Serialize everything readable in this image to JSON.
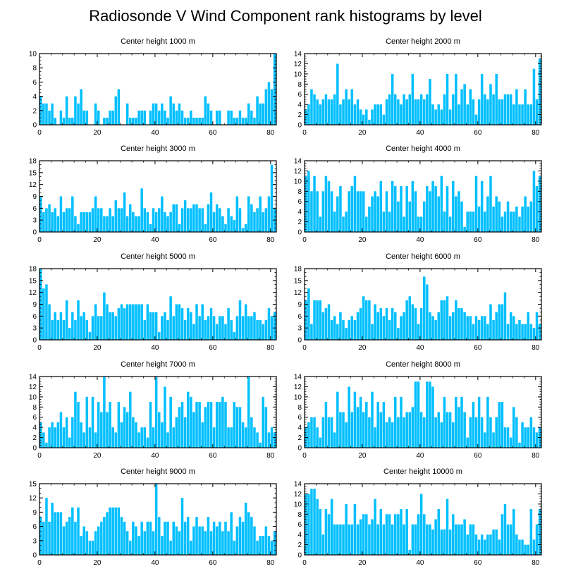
{
  "title": "Radiosonde V Wind Component rank histograms by level",
  "colors": {
    "bar": "#00bfff",
    "frame": "#000000"
  },
  "chart_data": [
    {
      "type": "bar",
      "title": "Center height 1000 m",
      "xlim": [
        0,
        82
      ],
      "ylim": [
        0,
        10
      ],
      "xticks": [
        0,
        20,
        40,
        60,
        80
      ],
      "yticks": [
        0,
        2,
        4,
        6,
        8,
        10
      ],
      "values": [
        4,
        3,
        3,
        2,
        3,
        1,
        0,
        2,
        1,
        4,
        1,
        1,
        4,
        3,
        5,
        2,
        2,
        0,
        0,
        3,
        2,
        0,
        1,
        1,
        2,
        2,
        4,
        5,
        0,
        0,
        3,
        1,
        1,
        1,
        2,
        2,
        2,
        0,
        2,
        3,
        3,
        2,
        3,
        2,
        1,
        4,
        3,
        2,
        3,
        2,
        1,
        1,
        2,
        1,
        1,
        1,
        1,
        4,
        3,
        2,
        0,
        2,
        2,
        0,
        0,
        2,
        2,
        1,
        1,
        2,
        1,
        1,
        3,
        2,
        1,
        4,
        3,
        3,
        5,
        6,
        5,
        10
      ]
    },
    {
      "type": "bar",
      "title": "Center height 2000 m",
      "xlim": [
        0,
        82
      ],
      "ylim": [
        0,
        14
      ],
      "xticks": [
        0,
        20,
        40,
        60,
        80
      ],
      "yticks": [
        0,
        2,
        4,
        6,
        8,
        10,
        12,
        14
      ],
      "values": [
        3,
        4,
        7,
        6,
        5,
        4,
        5,
        6,
        5,
        5,
        6,
        12,
        4,
        5,
        7,
        5,
        7,
        4,
        5,
        3,
        2,
        3,
        1,
        3,
        4,
        4,
        4,
        2,
        5,
        6,
        10,
        6,
        5,
        4,
        6,
        5,
        6,
        10,
        5,
        5,
        6,
        5,
        6,
        9,
        4,
        3,
        4,
        3,
        6,
        10,
        3,
        6,
        10,
        4,
        7,
        8,
        4,
        7,
        5,
        2,
        5,
        10,
        6,
        5,
        8,
        6,
        10,
        5,
        5,
        6,
        6,
        6,
        4,
        7,
        4,
        4,
        7,
        4,
        4,
        11,
        5,
        13
      ]
    },
    {
      "type": "bar",
      "title": "Center height 3000 m",
      "xlim": [
        0,
        82
      ],
      "ylim": [
        0,
        18
      ],
      "xticks": [
        0,
        20,
        40,
        60,
        80
      ],
      "yticks": [
        0,
        3,
        6,
        9,
        12,
        15,
        18
      ],
      "values": [
        9,
        5,
        6,
        7,
        5,
        6,
        4,
        9,
        5,
        6,
        6,
        9,
        4,
        2,
        5,
        5,
        5,
        5,
        6,
        9,
        6,
        6,
        4,
        4,
        6,
        4,
        8,
        6,
        6,
        10,
        4,
        7,
        5,
        4,
        4,
        11,
        6,
        5,
        2,
        6,
        5,
        6,
        9,
        5,
        4,
        5,
        7,
        7,
        2,
        6,
        8,
        6,
        6,
        7,
        7,
        6,
        6,
        2,
        7,
        10,
        5,
        7,
        6,
        4,
        2,
        6,
        4,
        3,
        9,
        6,
        1,
        2,
        9,
        7,
        5,
        6,
        9,
        5,
        6,
        9,
        17,
        6
      ]
    },
    {
      "type": "bar",
      "title": "Center height 4000 m",
      "xlim": [
        0,
        82
      ],
      "ylim": [
        0,
        14
      ],
      "xticks": [
        0,
        20,
        40,
        60,
        80
      ],
      "yticks": [
        0,
        2,
        4,
        6,
        8,
        10,
        12,
        14
      ],
      "values": [
        11,
        12,
        8,
        11,
        8,
        3,
        8,
        11,
        10,
        8,
        4,
        7,
        9,
        3,
        4,
        8,
        9,
        11,
        8,
        8,
        8,
        3,
        5,
        7,
        8,
        7,
        10,
        4,
        8,
        4,
        10,
        9,
        6,
        9,
        3,
        9,
        6,
        10,
        8,
        3,
        3,
        6,
        9,
        8,
        10,
        9,
        7,
        11,
        4,
        9,
        3,
        10,
        7,
        8,
        6,
        1,
        4,
        4,
        4,
        11,
        5,
        10,
        4,
        7,
        11,
        5,
        7,
        6,
        3,
        4,
        6,
        4,
        4,
        5,
        3,
        5,
        7,
        5,
        6,
        12,
        9,
        11
      ]
    },
    {
      "type": "bar",
      "title": "Center height 5000 m",
      "xlim": [
        0,
        82
      ],
      "ylim": [
        0,
        18
      ],
      "xticks": [
        0,
        20,
        40,
        60,
        80
      ],
      "yticks": [
        0,
        3,
        6,
        9,
        12,
        15,
        18
      ],
      "values": [
        18,
        13,
        14,
        9,
        5,
        7,
        5,
        7,
        5,
        10,
        3,
        7,
        5,
        10,
        6,
        7,
        5,
        2,
        6,
        9,
        6,
        6,
        12,
        9,
        7,
        7,
        6,
        8,
        9,
        8,
        9,
        9,
        9,
        9,
        9,
        9,
        5,
        9,
        7,
        7,
        7,
        2,
        6,
        7,
        5,
        11,
        6,
        9,
        9,
        8,
        5,
        8,
        7,
        4,
        9,
        6,
        9,
        5,
        6,
        8,
        6,
        4,
        6,
        6,
        4,
        8,
        5,
        2,
        6,
        10,
        6,
        9,
        6,
        6,
        7,
        5,
        5,
        4,
        5,
        8,
        6,
        7
      ]
    },
    {
      "type": "bar",
      "title": "Center height 6000 m",
      "xlim": [
        0,
        82
      ],
      "ylim": [
        0,
        18
      ],
      "xticks": [
        0,
        20,
        40,
        60,
        80
      ],
      "yticks": [
        0,
        3,
        6,
        9,
        12,
        15,
        18
      ],
      "values": [
        10,
        13,
        4,
        10,
        10,
        10,
        7,
        8,
        9,
        5,
        6,
        4,
        7,
        5,
        3,
        5,
        6,
        5,
        7,
        8,
        11,
        10,
        10,
        4,
        9,
        7,
        8,
        6,
        8,
        5,
        8,
        7,
        3,
        6,
        7,
        10,
        11,
        9,
        8,
        4,
        8,
        16,
        14,
        7,
        6,
        5,
        7,
        10,
        10,
        11,
        6,
        7,
        10,
        8,
        8,
        7,
        6,
        6,
        4,
        6,
        5,
        6,
        6,
        4,
        9,
        5,
        7,
        9,
        9,
        12,
        4,
        7,
        6,
        4,
        5,
        4,
        4,
        7,
        4,
        3,
        7,
        4
      ]
    },
    {
      "type": "bar",
      "title": "Center height 7000 m",
      "xlim": [
        0,
        82
      ],
      "ylim": [
        0,
        14
      ],
      "xticks": [
        0,
        20,
        40,
        60,
        80
      ],
      "yticks": [
        0,
        2,
        4,
        6,
        8,
        10,
        12,
        14
      ],
      "values": [
        5,
        3,
        1,
        4,
        5,
        4,
        5,
        7,
        4,
        6,
        2,
        6,
        11,
        9,
        5,
        3,
        10,
        4,
        10,
        3,
        9,
        7,
        14,
        7,
        9,
        4,
        3,
        9,
        5,
        8,
        7,
        11,
        6,
        5,
        3,
        4,
        4,
        2,
        9,
        4,
        14,
        7,
        5,
        12,
        3,
        10,
        4,
        6,
        8,
        9,
        6,
        11,
        10,
        7,
        9,
        9,
        5,
        8,
        9,
        9,
        4,
        9,
        9,
        10,
        9,
        4,
        4,
        9,
        8,
        8,
        5,
        4,
        14,
        6,
        4,
        3,
        1,
        10,
        8,
        3,
        4,
        3
      ]
    },
    {
      "type": "bar",
      "title": "Center height 8000 m",
      "xlim": [
        0,
        82
      ],
      "ylim": [
        0,
        14
      ],
      "xticks": [
        0,
        20,
        40,
        60,
        80
      ],
      "yticks": [
        0,
        2,
        4,
        6,
        8,
        10,
        12,
        14
      ],
      "values": [
        4,
        5,
        6,
        6,
        4,
        2,
        6,
        9,
        6,
        6,
        3,
        11,
        7,
        7,
        5,
        12,
        7,
        11,
        8,
        10,
        7,
        9,
        6,
        11,
        4,
        9,
        7,
        9,
        5,
        6,
        5,
        10,
        6,
        10,
        6,
        7,
        7,
        8,
        13,
        13,
        7,
        6,
        13,
        13,
        12,
        6,
        7,
        5,
        10,
        7,
        7,
        5,
        10,
        8,
        10,
        7,
        2,
        6,
        9,
        6,
        10,
        6,
        3,
        10,
        6,
        3,
        6,
        9,
        9,
        4,
        4,
        2,
        8,
        6,
        1,
        5,
        4,
        4,
        6,
        4,
        3,
        4
      ]
    },
    {
      "type": "bar",
      "title": "Center height 9000 m",
      "xlim": [
        0,
        82
      ],
      "ylim": [
        0,
        15
      ],
      "xticks": [
        0,
        20,
        40,
        60,
        80
      ],
      "yticks": [
        0,
        3,
        6,
        9,
        12,
        15
      ],
      "values": [
        8,
        7,
        12,
        7,
        11,
        9,
        9,
        9,
        6,
        7,
        8,
        10,
        7,
        10,
        4,
        6,
        5,
        3,
        3,
        5,
        6,
        7,
        8,
        9,
        10,
        10,
        10,
        10,
        8,
        7,
        5,
        3,
        7,
        6,
        4,
        7,
        5,
        7,
        7,
        5,
        15,
        8,
        4,
        7,
        7,
        3,
        7,
        6,
        5,
        12,
        7,
        8,
        3,
        6,
        8,
        6,
        6,
        5,
        8,
        5,
        7,
        6,
        7,
        5,
        7,
        5,
        9,
        3,
        6,
        8,
        7,
        11,
        9,
        8,
        6,
        3,
        4,
        4,
        6,
        4,
        3,
        5
      ]
    },
    {
      "type": "bar",
      "title": "Center height 10000 m",
      "xlim": [
        0,
        82
      ],
      "ylim": [
        0,
        14
      ],
      "xticks": [
        0,
        20,
        40,
        60,
        80
      ],
      "yticks": [
        0,
        2,
        4,
        6,
        8,
        10,
        12,
        14
      ],
      "values": [
        12,
        12,
        13,
        13,
        11,
        9,
        4,
        9,
        8,
        11,
        6,
        6,
        6,
        6,
        10,
        6,
        6,
        10,
        6,
        7,
        8,
        8,
        6,
        7,
        11,
        6,
        9,
        6,
        8,
        8,
        6,
        8,
        8,
        9,
        6,
        9,
        1,
        6,
        6,
        8,
        12,
        8,
        6,
        6,
        5,
        7,
        9,
        5,
        5,
        11,
        5,
        8,
        6,
        6,
        6,
        7,
        4,
        6,
        6,
        4,
        3,
        4,
        3,
        4,
        4,
        5,
        5,
        3,
        8,
        10,
        6,
        6,
        9,
        4,
        3,
        3,
        2,
        2,
        9,
        3,
        6,
        9
      ]
    }
  ]
}
